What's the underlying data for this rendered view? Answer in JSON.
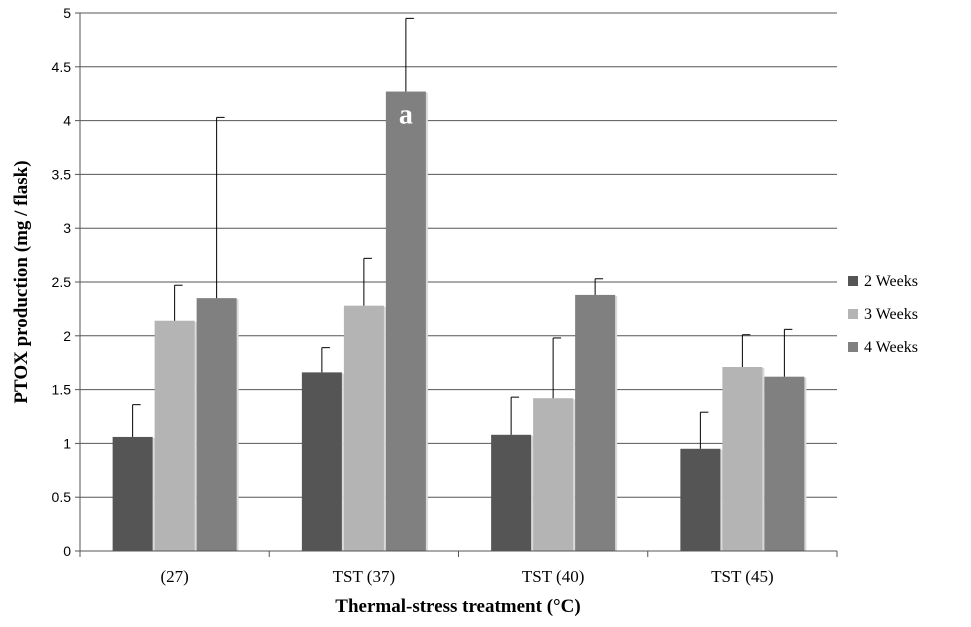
{
  "chart_data": {
    "type": "bar",
    "title": "",
    "xlabel": "Thermal-stress treatment (°C)",
    "ylabel": "PTOX production (mg / flask)",
    "ylim": [
      0,
      5
    ],
    "yticks": [
      "0",
      "0.5",
      "1",
      "1.5",
      "2",
      "2.5",
      "3",
      "3.5",
      "4",
      "4.5",
      "5"
    ],
    "grid": true,
    "legend_position": "right",
    "categories": [
      "(27)",
      "TST (37)",
      "TST (40)",
      "TST (45)"
    ],
    "series": [
      {
        "name": "2 Weeks",
        "color": "#555555",
        "values": [
          1.06,
          1.66,
          1.08,
          0.95
        ],
        "errors": [
          0.3,
          0.23,
          0.35,
          0.34
        ]
      },
      {
        "name": "3 Weeks",
        "color": "#b4b4b4",
        "values": [
          2.14,
          2.28,
          1.42,
          1.71
        ],
        "errors": [
          0.33,
          0.44,
          0.56,
          0.3
        ]
      },
      {
        "name": "4 Weeks",
        "color": "#808080",
        "values": [
          2.35,
          4.27,
          2.38,
          1.62
        ],
        "errors": [
          1.68,
          0.68,
          0.15,
          0.44
        ]
      }
    ],
    "annotations": [
      {
        "text": "a",
        "category": "TST (37)",
        "series": "4 Weeks"
      }
    ]
  }
}
